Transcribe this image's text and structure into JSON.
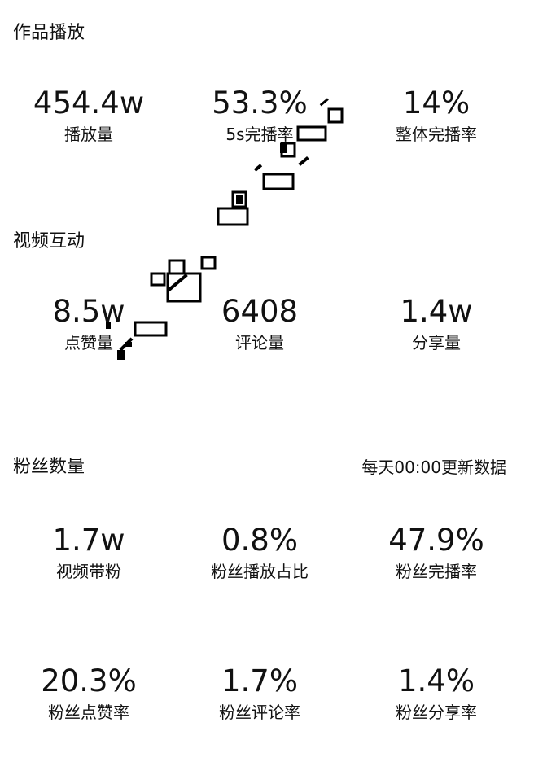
{
  "sections": {
    "works_play": {
      "title": "作品播放",
      "stats": [
        {
          "value": "454.4w",
          "label": "播放量"
        },
        {
          "value": "53.3%",
          "label": "5s完播率"
        },
        {
          "value": "14%",
          "label": "整体完播率"
        }
      ]
    },
    "video_interaction": {
      "title": "视频互动",
      "stats": [
        {
          "value": "8.5w",
          "label": "点赞量"
        },
        {
          "value": "6408",
          "label": "评论量"
        },
        {
          "value": "1.4w",
          "label": "分享量"
        }
      ]
    },
    "fans": {
      "title": "粉丝数量",
      "note": "每天00:00更新数据",
      "stats_row1": [
        {
          "value": "1.7w",
          "label": "视频带粉"
        },
        {
          "value": "0.8%",
          "label": "粉丝播放占比"
        },
        {
          "value": "47.9%",
          "label": "粉丝完播率"
        }
      ],
      "stats_row2": [
        {
          "value": "20.3%",
          "label": "粉丝点赞率"
        },
        {
          "value": "1.7%",
          "label": "粉丝评论率"
        },
        {
          "value": "1.4%",
          "label": "粉丝分享率"
        }
      ]
    }
  }
}
